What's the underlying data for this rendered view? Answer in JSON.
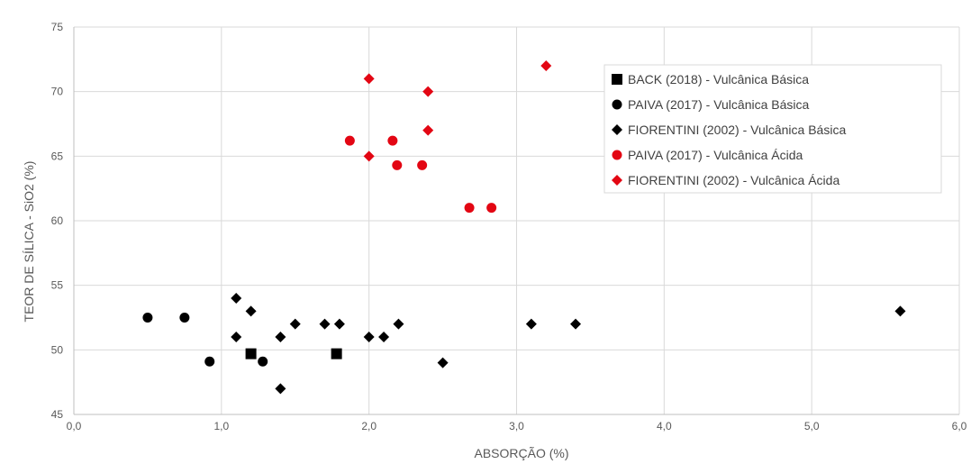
{
  "chart_data": {
    "type": "scatter",
    "xlabel": "ABSORÇÃO (%)",
    "ylabel": "TEOR DE SÍLICA - SiO2 (%)",
    "xlim": [
      0,
      6
    ],
    "ylim": [
      45,
      75
    ],
    "x_ticks": [
      "0,0",
      "1,0",
      "2,0",
      "3,0",
      "4,0",
      "5,0",
      "6,0"
    ],
    "y_ticks": [
      "45",
      "50",
      "55",
      "60",
      "65",
      "70",
      "75"
    ],
    "grid": true,
    "legend_position": "top-right",
    "series": [
      {
        "name": "BACK (2018) - Vulcânica Básica",
        "marker": "square",
        "color": "#000000",
        "points": [
          [
            1.2,
            49.7
          ],
          [
            1.78,
            49.7
          ]
        ]
      },
      {
        "name": "PAIVA (2017) - Vulcânica Básica",
        "marker": "circle",
        "color": "#000000",
        "points": [
          [
            0.5,
            52.5
          ],
          [
            0.75,
            52.5
          ],
          [
            0.92,
            49.1
          ],
          [
            1.28,
            49.1
          ]
        ]
      },
      {
        "name": "FIORENTINI (2002) - Vulcânica Básica",
        "marker": "diamond",
        "color": "#000000",
        "points": [
          [
            1.1,
            54
          ],
          [
            1.1,
            51
          ],
          [
            1.2,
            53
          ],
          [
            1.4,
            51
          ],
          [
            1.4,
            47
          ],
          [
            1.5,
            52
          ],
          [
            1.7,
            52
          ],
          [
            1.8,
            52
          ],
          [
            2.0,
            51
          ],
          [
            2.1,
            51
          ],
          [
            2.2,
            52
          ],
          [
            2.5,
            49
          ],
          [
            3.1,
            52
          ],
          [
            3.4,
            52
          ],
          [
            5.6,
            53
          ]
        ]
      },
      {
        "name": "PAIVA (2017) - Vulcânica Ácida",
        "marker": "circle",
        "color": "#e30613",
        "points": [
          [
            1.87,
            66.2
          ],
          [
            2.16,
            66.2
          ],
          [
            2.19,
            64.3
          ],
          [
            2.36,
            64.3
          ],
          [
            2.68,
            61
          ],
          [
            2.83,
            61
          ]
        ]
      },
      {
        "name": "FIORENTINI (2002) - Vulcânica Ácida",
        "marker": "diamond",
        "color": "#e30613",
        "points": [
          [
            2.0,
            71
          ],
          [
            2.0,
            65
          ],
          [
            2.4,
            70
          ],
          [
            2.4,
            67
          ],
          [
            3.2,
            72
          ]
        ]
      }
    ]
  }
}
